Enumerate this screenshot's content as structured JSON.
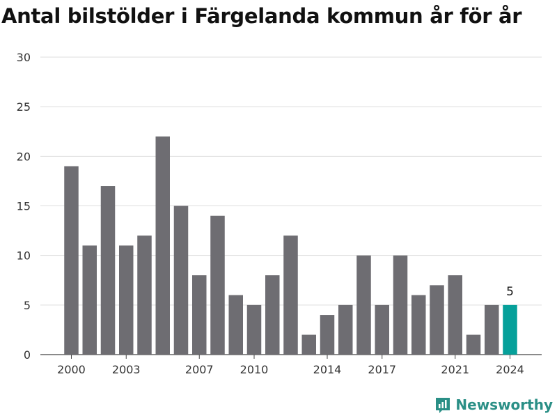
{
  "chart_data": {
    "type": "bar",
    "title": "Antal bilstölder i Färgelanda kommun år för år",
    "xlabel": "",
    "ylabel": "",
    "ylim": [
      0,
      30
    ],
    "yticks": [
      0,
      5,
      10,
      15,
      20,
      25,
      30
    ],
    "grid": true,
    "categories": [
      2000,
      2001,
      2002,
      2003,
      2004,
      2005,
      2006,
      2007,
      2008,
      2009,
      2010,
      2011,
      2012,
      2013,
      2014,
      2015,
      2016,
      2017,
      2018,
      2019,
      2020,
      2021,
      2022,
      2023,
      2024
    ],
    "xtick_labels": [
      2000,
      2003,
      2007,
      2010,
      2014,
      2017,
      2021,
      2024
    ],
    "values": [
      19,
      11,
      17,
      11,
      12,
      22,
      15,
      8,
      14,
      6,
      5,
      8,
      12,
      2,
      4,
      5,
      10,
      5,
      10,
      6,
      7,
      8,
      2,
      5,
      5
    ],
    "highlight": {
      "category": 2024,
      "label": "5",
      "color": "#06a09a"
    },
    "bar_color": "#6e6d72"
  },
  "brand": {
    "name": "Newsworthy",
    "color": "#2a8f86",
    "icon": "newsworthy-logo-icon"
  }
}
